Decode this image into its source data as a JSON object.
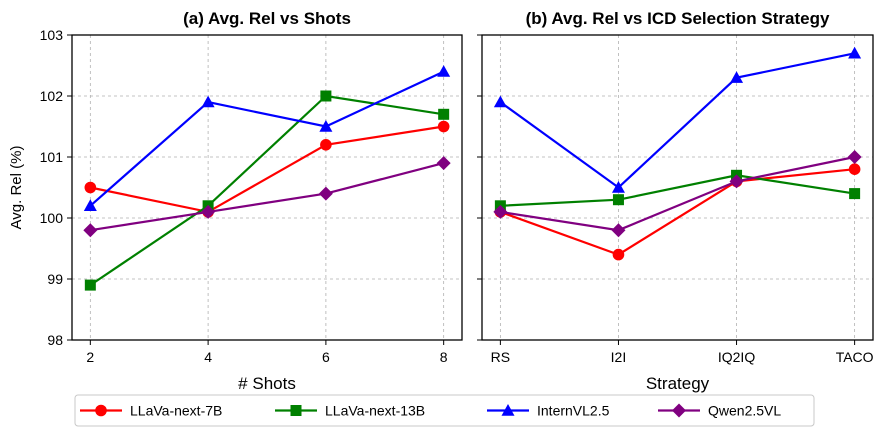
{
  "chart_data": [
    {
      "type": "line",
      "title": "(a) Avg. Rel vs Shots",
      "xlabel": "# Shots",
      "ylabel": "Avg. Rel (%)",
      "x": [
        "2",
        "4",
        "6",
        "8"
      ],
      "yticks": [
        "98",
        "99",
        "100",
        "101",
        "102",
        "103"
      ],
      "ylim": [
        98,
        103
      ],
      "grid": true,
      "series": [
        {
          "name": "LLaVa-next-7B",
          "color": "#ff0000",
          "marker": "circle",
          "values": [
            100.5,
            100.1,
            101.2,
            101.5
          ]
        },
        {
          "name": "LLaVa-next-13B",
          "color": "#008000",
          "marker": "square",
          "values": [
            98.9,
            100.2,
            102.0,
            101.7
          ]
        },
        {
          "name": "InternVL2.5",
          "color": "#0000ff",
          "marker": "triangle",
          "values": [
            100.2,
            101.9,
            101.5,
            102.4
          ]
        },
        {
          "name": "Qwen2.5VL",
          "color": "#800080",
          "marker": "diamond",
          "values": [
            99.8,
            100.1,
            100.4,
            100.9
          ]
        }
      ]
    },
    {
      "type": "line",
      "title": "(b) Avg. Rel vs ICD Selection Strategy",
      "xlabel": "Strategy",
      "ylabel": "",
      "x": [
        "RS",
        "I2I",
        "IQ2IQ",
        "TACO"
      ],
      "ylim": [
        98,
        103
      ],
      "grid": true,
      "series": [
        {
          "name": "LLaVa-next-7B",
          "color": "#ff0000",
          "marker": "circle",
          "values": [
            100.1,
            99.4,
            100.6,
            100.8
          ]
        },
        {
          "name": "LLaVa-next-13B",
          "color": "#008000",
          "marker": "square",
          "values": [
            100.2,
            100.3,
            100.7,
            100.4
          ]
        },
        {
          "name": "InternVL2.5",
          "color": "#0000ff",
          "marker": "triangle",
          "values": [
            101.9,
            100.5,
            102.3,
            102.7
          ]
        },
        {
          "name": "Qwen2.5VL",
          "color": "#800080",
          "marker": "diamond",
          "values": [
            100.1,
            99.8,
            100.6,
            101.0
          ]
        }
      ]
    }
  ],
  "legend": {
    "placement": "bottom-center",
    "entries": [
      "LLaVa-next-7B",
      "LLaVa-next-13B",
      "InternVL2.5",
      "Qwen2.5VL"
    ]
  }
}
